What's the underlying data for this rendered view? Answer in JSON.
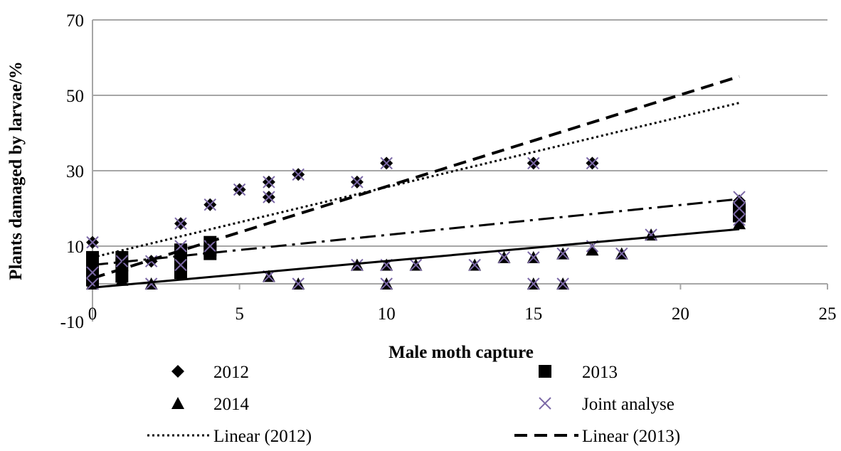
{
  "chart_data": {
    "type": "scatter",
    "x_label": "Male moth capture",
    "y_label": "Plants damaged by larvae/%",
    "xlim": [
      0,
      25
    ],
    "xticks": [
      0,
      5,
      10,
      15,
      20,
      25
    ],
    "ylim": [
      -10,
      70
    ],
    "yticks": [
      -10,
      10,
      30,
      50,
      70
    ],
    "grid": true,
    "series": [
      {
        "name": "2012",
        "marker": "diamond",
        "color": "#000000",
        "x": [
          0,
          2,
          3,
          4,
          5,
          6,
          6,
          7,
          9,
          10,
          15,
          17,
          22
        ],
        "y": [
          11,
          6,
          16,
          21,
          25,
          27,
          23,
          29,
          27,
          32,
          32,
          32,
          22
        ]
      },
      {
        "name": "2013",
        "marker": "square",
        "color": "#000000",
        "x": [
          0,
          0,
          0,
          0,
          1,
          1,
          1,
          3,
          3,
          3,
          3,
          4,
          4,
          4,
          22,
          22
        ],
        "y": [
          7,
          5,
          3,
          1,
          7,
          5,
          2,
          9,
          7,
          5,
          3,
          11,
          9,
          8,
          18,
          20
        ]
      },
      {
        "name": "2014",
        "marker": "triangle",
        "color": "#000000",
        "x": [
          0,
          1,
          2,
          3,
          6,
          7,
          9,
          10,
          10,
          11,
          13,
          14,
          15,
          15,
          16,
          16,
          17,
          18,
          19,
          22
        ],
        "y": [
          0,
          1,
          0,
          4,
          2,
          0,
          5,
          5,
          0,
          5,
          5,
          7,
          7,
          0,
          8,
          0,
          9,
          8,
          13,
          16
        ]
      },
      {
        "name": "Joint analyse",
        "marker": "x",
        "color": "#7b68a6",
        "x": [
          0,
          0,
          0,
          1,
          2,
          2,
          3,
          3,
          3,
          4,
          4,
          5,
          6,
          6,
          6,
          7,
          7,
          9,
          9,
          10,
          10,
          10,
          11,
          13,
          14,
          15,
          15,
          15,
          16,
          16,
          17,
          17,
          18,
          19,
          22,
          22,
          22
        ],
        "y": [
          11,
          3,
          0,
          6,
          6,
          0,
          16,
          10,
          5,
          21,
          10,
          25,
          27,
          23,
          2,
          29,
          0,
          27,
          5,
          32,
          5,
          0,
          5,
          5,
          7,
          32,
          7,
          0,
          8,
          0,
          32,
          10,
          8,
          13,
          23,
          20,
          17
        ]
      },
      {
        "name": "Linear (2012)",
        "marker": "line",
        "dash": "3,4",
        "width": 3,
        "color": "#000000",
        "x": [
          0,
          22
        ],
        "y": [
          7,
          48
        ]
      },
      {
        "name": "Linear (2013)",
        "marker": "line",
        "dash": "18,10",
        "width": 4,
        "color": "#000000",
        "x": [
          0,
          22
        ],
        "y": [
          1.5,
          55
        ]
      },
      {
        "marker": "line",
        "dash": "none",
        "width": 3,
        "color": "#000000",
        "x": [
          0,
          22
        ],
        "y": [
          -1,
          14.5
        ]
      },
      {
        "marker": "line",
        "dash": "22,8,4,8",
        "width": 3,
        "color": "#000000",
        "x": [
          0,
          22
        ],
        "y": [
          5,
          22.5
        ]
      }
    ]
  }
}
